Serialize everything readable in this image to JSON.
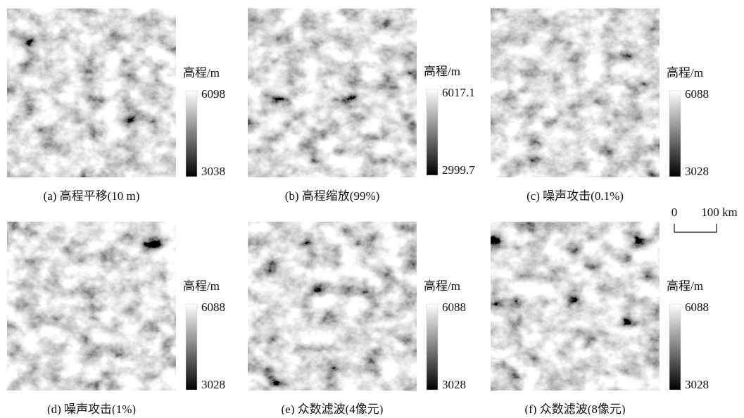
{
  "panels": [
    {
      "caption": "(a) 高程平移(10 m)",
      "legend_title": "高程/m",
      "max": 6098,
      "min": 3038
    },
    {
      "caption": "(b) 高程缩放(99%)",
      "legend_title": "高程/m",
      "max": 6017.1,
      "min": 2999.7
    },
    {
      "caption": "(c) 噪声攻击(0.1%)",
      "legend_title": "高程/m",
      "max": 6088,
      "min": 3028
    },
    {
      "caption": "(d) 噪声攻击(1%)",
      "legend_title": "高程/m",
      "max": 6088,
      "min": 3028
    },
    {
      "caption": "(e) 众数滤波(4像元)",
      "legend_title": "高程/m",
      "max": 6088,
      "min": 3028
    },
    {
      "caption": "(f) 众数滤波(8像元)",
      "legend_title": "高程/m",
      "max": 6088,
      "min": 3028
    }
  ],
  "scale_bar": {
    "start": "0",
    "end": "100 km"
  }
}
